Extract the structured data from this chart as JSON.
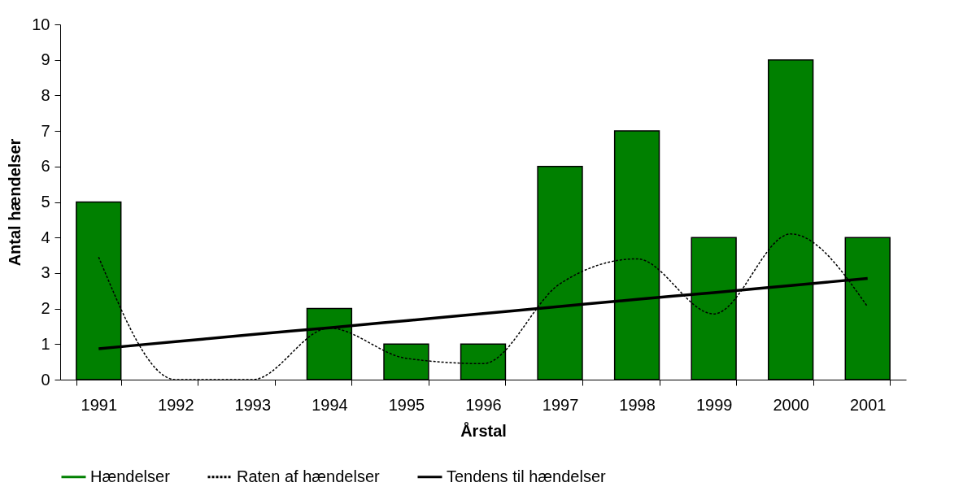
{
  "chart_data": {
    "type": "bar",
    "xlabel": "Årstal",
    "ylabel": "Antal hændelser",
    "categories": [
      "1991",
      "1992",
      "1993",
      "1994",
      "1995",
      "1996",
      "1997",
      "1998",
      "1999",
      "2000",
      "2001"
    ],
    "series": [
      {
        "name": "Hændelser",
        "color": "#008000",
        "values": [
          5,
          0,
          0,
          2,
          1,
          1,
          6,
          7,
          4,
          9,
          4
        ]
      },
      {
        "name": "Raten af hændelser",
        "type": "line",
        "line_style": "dashed",
        "color": "#000000",
        "values": [
          3.45,
          0,
          0,
          1.45,
          0.6,
          0.45,
          2.7,
          3.4,
          1.85,
          4.1,
          2.05
        ]
      },
      {
        "name": "Tendens til hændelser",
        "type": "line",
        "line_style": "solid",
        "color": "#000000",
        "values": [
          0.87,
          1.07,
          1.27,
          1.46,
          1.66,
          1.86,
          2.06,
          2.26,
          2.45,
          2.65,
          2.85
        ]
      }
    ],
    "ylim": [
      0,
      10
    ],
    "yticks": [
      0,
      1,
      2,
      3,
      4,
      5,
      6,
      7,
      8,
      9,
      10
    ],
    "legend": "bottom"
  }
}
